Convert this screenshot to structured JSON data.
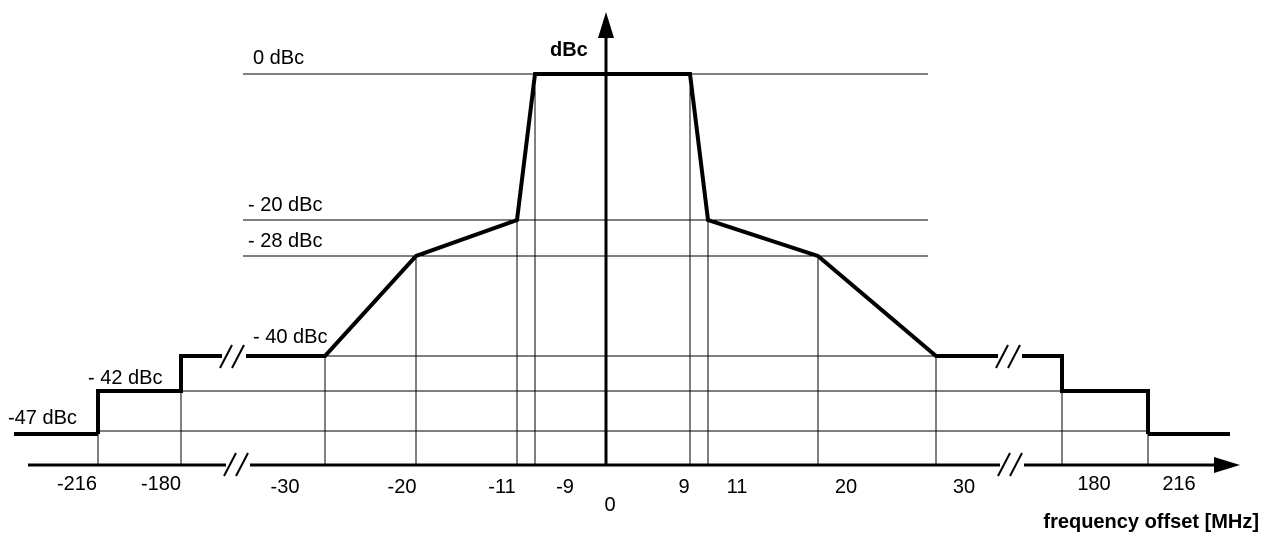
{
  "chart_data": {
    "type": "line",
    "title": "",
    "ylabel": "dBc",
    "xlabel": "frequency offset [MHz]",
    "levels": [
      "0 dBc",
      "- 20 dBc",
      "- 28 dBc",
      "- 40 dBc",
      "- 42 dBc",
      "-47 dBc"
    ],
    "x_ticks": [
      "-216",
      "-180",
      "-30",
      "-20",
      "-11",
      "-9",
      "0",
      "9",
      "11",
      "20",
      "30",
      "180",
      "216"
    ],
    "axis_breaks": [
      "-180 to -30",
      "30 to 180"
    ],
    "mask_points": [
      {
        "x": -216,
        "y": -47
      },
      {
        "x": -216,
        "y": -42
      },
      {
        "x": -180,
        "y": -42
      },
      {
        "x": -180,
        "y": -40
      },
      {
        "x": -30,
        "y": -40
      },
      {
        "x": -20,
        "y": -28
      },
      {
        "x": -11,
        "y": -20
      },
      {
        "x": -9,
        "y": 0
      },
      {
        "x": 9,
        "y": 0
      },
      {
        "x": 11,
        "y": -20
      },
      {
        "x": 20,
        "y": -28
      },
      {
        "x": 30,
        "y": -40
      },
      {
        "x": 180,
        "y": -40
      },
      {
        "x": 180,
        "y": -42
      },
      {
        "x": 216,
        "y": -42
      },
      {
        "x": 216,
        "y": -47
      }
    ],
    "line_color": "#000000"
  }
}
